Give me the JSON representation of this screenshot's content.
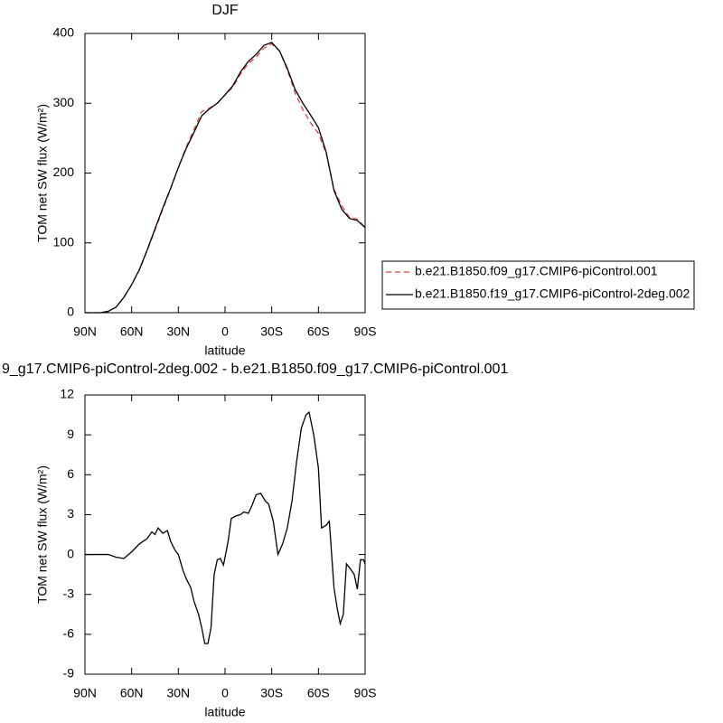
{
  "chart_data": [
    {
      "type": "line",
      "title": "DJF",
      "x": [
        90,
        85,
        80,
        75,
        70,
        65,
        60,
        55,
        50,
        45,
        40,
        35,
        30,
        25,
        20,
        15,
        10,
        5,
        0,
        -5,
        -10,
        -15,
        -20,
        -25,
        -30,
        -35,
        -40,
        -45,
        -50,
        -55,
        -60,
        -65,
        -70,
        -75,
        -80,
        -85,
        -90
      ],
      "series": [
        {
          "name": "b.e21.B1850.f09_g17.CMIP6-piControl.001",
          "color": "#e0413a",
          "style": "dashed",
          "values": [
            0,
            0,
            0,
            2,
            8,
            22,
            40,
            61,
            89,
            118,
            148,
            177,
            208,
            237,
            262,
            288,
            293,
            300,
            312,
            323,
            342,
            357,
            366,
            379,
            385,
            375,
            348,
            315,
            291,
            272,
            257,
            228,
            177,
            153,
            136,
            134,
            122
          ]
        },
        {
          "name": "b.e21.B1850.f19_g17.CMIP6-piControl-2deg.002",
          "color": "#000000",
          "style": "solid",
          "values": [
            0,
            0,
            0,
            2,
            8,
            22,
            40,
            62,
            90,
            120,
            150,
            178,
            208,
            235,
            258,
            282,
            292,
            300,
            312,
            325,
            345,
            360,
            370,
            383,
            387,
            375,
            350,
            320,
            300,
            283,
            265,
            230,
            175,
            148,
            135,
            132,
            122
          ]
        }
      ],
      "xlim": [
        90,
        -90
      ],
      "ylim": [
        0,
        400
      ],
      "xticks": [
        {
          "value": 90,
          "label": "90N"
        },
        {
          "value": 60,
          "label": "60N"
        },
        {
          "value": 30,
          "label": "30N"
        },
        0,
        {
          "value": -30,
          "label": "30S"
        },
        {
          "value": -60,
          "label": "60S"
        },
        {
          "value": -90,
          "label": "90S"
        }
      ],
      "yticks": [
        0,
        100,
        200,
        300,
        400
      ],
      "xlabel": "latitude",
      "ylabel": "TOM net SW flux (W/m²)",
      "legend": "right"
    },
    {
      "type": "line",
      "title": "9_g17.CMIP6-piControl-2deg.002 - b.e21.B1850.f09_g17.CMIP6-piControl.001",
      "x": [
        90,
        80,
        75,
        70,
        65,
        60,
        55,
        50,
        47,
        45,
        43,
        40,
        37,
        35,
        32,
        30,
        27,
        25,
        22,
        20,
        17,
        15,
        13,
        11,
        9,
        7,
        5,
        3,
        1,
        -2,
        -4,
        -7,
        -10,
        -12,
        -15,
        -17,
        -20,
        -23,
        -26,
        -28,
        -31,
        -34,
        -37,
        -40,
        -43,
        -46,
        -49,
        -52,
        -54,
        -57,
        -60,
        -62,
        -65,
        -67,
        -70,
        -72,
        -74,
        -76,
        -78,
        -80,
        -83,
        -85,
        -87,
        -89,
        -90
      ],
      "color": "#000000",
      "values": [
        0,
        0,
        0,
        -0.2,
        -0.3,
        0.2,
        0.8,
        1.2,
        1.7,
        1.5,
        2.0,
        1.6,
        1.8,
        1.0,
        0.3,
        0.0,
        -1.2,
        -1.8,
        -2.5,
        -3.5,
        -4.5,
        -5.5,
        -6.7,
        -6.7,
        -5.5,
        -1.5,
        -0.4,
        -0.3,
        -0.8,
        1.0,
        2.7,
        2.9,
        3.0,
        3.2,
        3.1,
        3.6,
        4.5,
        4.6,
        4.0,
        3.8,
        2.5,
        0.0,
        0.8,
        2.0,
        4.0,
        7.0,
        9.5,
        10.5,
        10.7,
        9.0,
        6.5,
        2.0,
        2.2,
        2.5,
        -2.5,
        -4.0,
        -5.2,
        -4.5,
        -0.7,
        -1.0,
        -1.5,
        -2.6,
        -0.4,
        -0.4,
        -0.7
      ],
      "xlim": [
        90,
        -90
      ],
      "ylim": [
        -9,
        12
      ],
      "xticks": [
        {
          "value": 90,
          "label": "90N"
        },
        {
          "value": 60,
          "label": "60N"
        },
        {
          "value": 30,
          "label": "30N"
        },
        0,
        {
          "value": -30,
          "label": "30S"
        },
        {
          "value": -60,
          "label": "60S"
        },
        {
          "value": -90,
          "label": "90S"
        }
      ],
      "yticks": [
        -9,
        -6,
        -3,
        0,
        3,
        6,
        9,
        12
      ],
      "xlabel": "latitude",
      "ylabel": "TOM net SW flux (W/m²)"
    }
  ]
}
